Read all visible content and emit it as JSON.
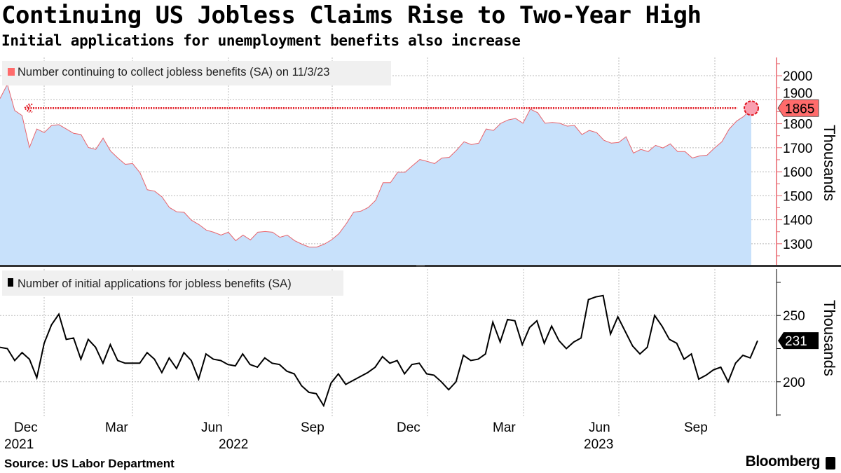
{
  "header": {
    "title": "Continuing US Jobless Claims Rise to Two-Year High",
    "subtitle": "Initial applications for unemployment benefits also increase"
  },
  "footer": {
    "source": "Source: US Labor Department",
    "brand": "Bloomberg"
  },
  "colors": {
    "continuing_line": "#e8636b",
    "continuing_fill": "#c8e1fb",
    "highlight": "#ff6b6b",
    "initial_line": "#000000"
  },
  "chart_data": [
    {
      "type": "area",
      "legend": "Number continuing to collect jobless benefits (SA) on 11/3/23",
      "ylabel": "Thousands",
      "ylim": [
        1212,
        2076
      ],
      "yticks": [
        1300,
        1400,
        1500,
        1600,
        1700,
        1800,
        1900,
        2000
      ],
      "ytick_labels": [
        "1300",
        "1400",
        "1500",
        "1600",
        "1700",
        "1800",
        "1900",
        "2000"
      ],
      "last_value": 1865,
      "last_value_label": "1865",
      "grid": true,
      "values": [
        1905,
        1964,
        1855,
        1834,
        1701,
        1778,
        1763,
        1793,
        1796,
        1778,
        1760,
        1755,
        1701,
        1693,
        1740,
        1687,
        1657,
        1631,
        1634,
        1596,
        1525,
        1519,
        1495,
        1451,
        1433,
        1431,
        1398,
        1380,
        1357,
        1348,
        1336,
        1348,
        1313,
        1336,
        1316,
        1348,
        1351,
        1348,
        1327,
        1336,
        1313,
        1298,
        1286,
        1286,
        1298,
        1316,
        1342,
        1383,
        1431,
        1436,
        1451,
        1481,
        1554,
        1554,
        1598,
        1598,
        1625,
        1651,
        1643,
        1634,
        1657,
        1660,
        1690,
        1725,
        1713,
        1719,
        1778,
        1772,
        1802,
        1816,
        1822,
        1802,
        1861,
        1846,
        1802,
        1805,
        1802,
        1790,
        1793,
        1755,
        1772,
        1763,
        1731,
        1719,
        1722,
        1746,
        1678,
        1693,
        1684,
        1710,
        1699,
        1716,
        1684,
        1684,
        1657,
        1666,
        1669,
        1699,
        1725,
        1778,
        1811,
        1831,
        1865
      ]
    },
    {
      "type": "line",
      "legend": "Number of initial applications for jobless benefits (SA)",
      "ylabel": "Thousands",
      "ylim": [
        174,
        285
      ],
      "yticks": [
        200,
        250
      ],
      "ytick_labels": [
        "200",
        "250"
      ],
      "last_value": 231,
      "last_value_label": "231",
      "grid": true,
      "values": [
        226,
        225,
        216,
        222,
        217,
        203,
        229,
        243,
        251,
        232,
        233,
        217,
        232,
        226,
        214,
        228,
        216,
        214,
        214,
        214,
        222,
        217,
        207,
        218,
        210,
        222,
        216,
        202,
        221,
        217,
        216,
        213,
        212,
        221,
        213,
        211,
        218,
        214,
        213,
        208,
        206,
        197,
        192,
        191,
        182,
        199,
        206,
        198,
        201,
        204,
        207,
        211,
        219,
        214,
        216,
        206,
        213,
        214,
        206,
        205,
        200,
        194,
        200,
        220,
        216,
        217,
        221,
        245,
        230,
        247,
        246,
        228,
        241,
        246,
        229,
        242,
        231,
        225,
        230,
        233,
        262,
        264,
        265,
        236,
        249,
        238,
        227,
        221,
        226,
        250,
        242,
        232,
        229,
        217,
        221,
        202,
        205,
        209,
        211,
        200,
        214,
        220,
        218,
        231
      ]
    }
  ],
  "x_axis": {
    "months": [
      "Dec",
      "Mar",
      "Jun",
      "Sep",
      "Dec",
      "Mar",
      "Jun",
      "Sep"
    ],
    "years": [
      "2021",
      "2022",
      "2023"
    ]
  }
}
